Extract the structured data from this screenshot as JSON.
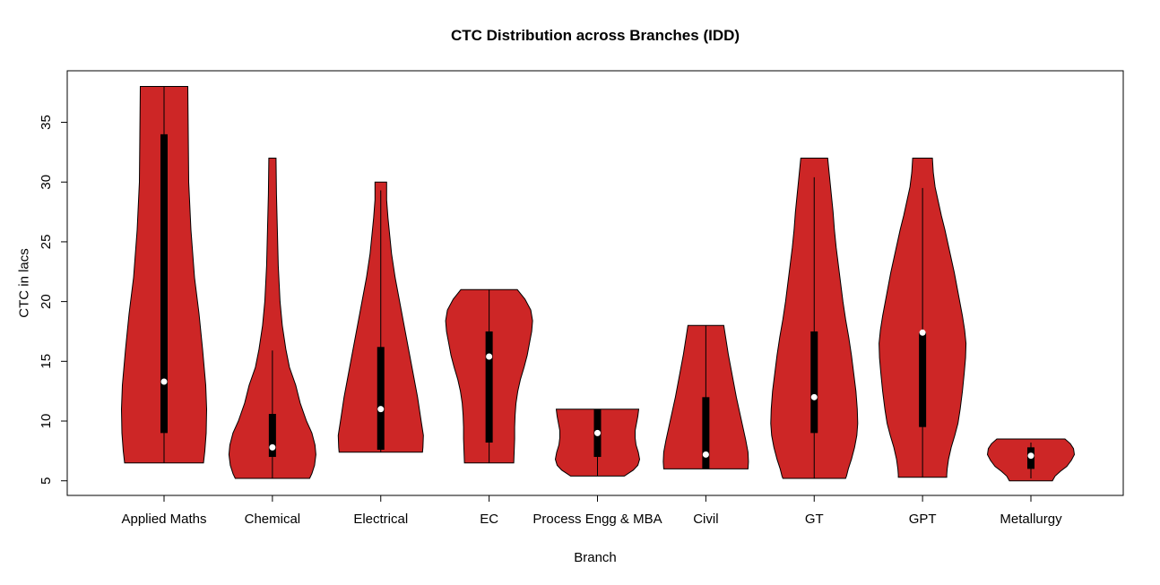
{
  "title": "CTC Distribution across Branches (IDD)",
  "chart_data": {
    "type": "violin",
    "title": "CTC Distribution across Branches (IDD)",
    "xlabel": "Branch",
    "ylabel": "CTC in lacs",
    "ylim": [
      3.8,
      39.3
    ],
    "yticks": [
      5,
      10,
      15,
      20,
      25,
      30,
      35
    ],
    "grid": false,
    "legend": "none",
    "fill_color": "#CD2626",
    "outline_color": "#000000",
    "box_color": "#000000",
    "median_dot_color": "#ffffff",
    "categories": [
      "Applied Maths",
      "Chemical",
      "Electrical",
      "EC",
      "Process Engg & MBA",
      "Civil",
      "GT",
      "GPT",
      "Metallurgy"
    ],
    "series": [
      {
        "branch": "Applied Maths",
        "min": 6.5,
        "max": 38,
        "q1": 9,
        "q3": 34,
        "median": 13.3,
        "whisker_low": 6.5,
        "whisker_high": 38,
        "profile": [
          [
            38,
            26.5
          ],
          [
            34,
            27
          ],
          [
            30,
            27.5
          ],
          [
            26,
            30
          ],
          [
            22,
            34
          ],
          [
            19,
            39
          ],
          [
            16,
            43
          ],
          [
            13,
            46.5
          ],
          [
            11,
            47.5
          ],
          [
            9,
            47
          ],
          [
            7.5,
            45.5
          ],
          [
            6.5,
            44
          ]
        ]
      },
      {
        "branch": "Chemical",
        "min": 5.2,
        "max": 32,
        "q1": 7,
        "q3": 10.6,
        "median": 7.8,
        "whisker_low": 5.2,
        "whisker_high": 15.9,
        "profile": [
          [
            32,
            4
          ],
          [
            29,
            4.5
          ],
          [
            26,
            5.5
          ],
          [
            23,
            6.5
          ],
          [
            20,
            8.5
          ],
          [
            18,
            11
          ],
          [
            16,
            15
          ],
          [
            14.5,
            19
          ],
          [
            13,
            26
          ],
          [
            11.5,
            31
          ],
          [
            10,
            38
          ],
          [
            9,
            44
          ],
          [
            8,
            47.5
          ],
          [
            7.2,
            48.5
          ],
          [
            6.3,
            47
          ],
          [
            5.6,
            44
          ],
          [
            5.2,
            41.5
          ]
        ]
      },
      {
        "branch": "Electrical",
        "min": 7.4,
        "max": 30,
        "q1": 7.6,
        "q3": 16.2,
        "median": 11,
        "whisker_low": 7.4,
        "whisker_high": 29.3,
        "profile": [
          [
            30,
            6.5
          ],
          [
            28.5,
            6.5
          ],
          [
            27,
            8
          ],
          [
            25.5,
            10
          ],
          [
            24,
            12
          ],
          [
            22,
            16
          ],
          [
            20,
            21
          ],
          [
            18,
            26
          ],
          [
            16,
            31
          ],
          [
            14,
            36
          ],
          [
            12,
            41
          ],
          [
            10,
            45
          ],
          [
            8.8,
            47.5
          ],
          [
            7.8,
            47
          ],
          [
            7.4,
            46.5
          ]
        ]
      },
      {
        "branch": "EC",
        "min": 6.5,
        "max": 21,
        "q1": 8.2,
        "q3": 17.5,
        "median": 15.4,
        "whisker_low": 6.5,
        "whisker_high": 21,
        "profile": [
          [
            21,
            31.5
          ],
          [
            20.2,
            40
          ],
          [
            19.3,
            46.5
          ],
          [
            18.4,
            48.5
          ],
          [
            17.5,
            47.5
          ],
          [
            16.5,
            45
          ],
          [
            15.5,
            42.5
          ],
          [
            14.5,
            39
          ],
          [
            13.5,
            35
          ],
          [
            12.5,
            32
          ],
          [
            11.5,
            30
          ],
          [
            10.5,
            29
          ],
          [
            9.5,
            28.5
          ],
          [
            8.5,
            28.5
          ],
          [
            7.5,
            28
          ],
          [
            6.5,
            27.5
          ]
        ]
      },
      {
        "branch": "Process Engg & MBA",
        "min": 5.4,
        "max": 11,
        "q1": 7,
        "q3": 11,
        "median": 9,
        "whisker_low": 5.4,
        "whisker_high": 11,
        "profile": [
          [
            11,
            46
          ],
          [
            10.4,
            45
          ],
          [
            9.8,
            43.5
          ],
          [
            9.2,
            42
          ],
          [
            8.6,
            42
          ],
          [
            8,
            43
          ],
          [
            7.4,
            45.5
          ],
          [
            6.8,
            47
          ],
          [
            6.3,
            45
          ],
          [
            5.9,
            40
          ],
          [
            5.6,
            34
          ],
          [
            5.4,
            30
          ]
        ]
      },
      {
        "branch": "Civil",
        "min": 6,
        "max": 18,
        "q1": 6,
        "q3": 12,
        "median": 7.2,
        "whisker_low": 6,
        "whisker_high": 18,
        "profile": [
          [
            18,
            20
          ],
          [
            16.8,
            22.5
          ],
          [
            15.6,
            25
          ],
          [
            14.4,
            28
          ],
          [
            13.2,
            31
          ],
          [
            12,
            34
          ],
          [
            10.8,
            37.5
          ],
          [
            9.6,
            41
          ],
          [
            8.4,
            44.5
          ],
          [
            7.4,
            47
          ],
          [
            6.6,
            47.5
          ],
          [
            6,
            47
          ]
        ]
      },
      {
        "branch": "GT",
        "min": 5.2,
        "max": 32,
        "q1": 9,
        "q3": 17.5,
        "median": 12,
        "whisker_low": 5.2,
        "whisker_high": 30.4,
        "profile": [
          [
            32,
            15
          ],
          [
            30.5,
            17
          ],
          [
            29,
            19
          ],
          [
            27.5,
            21
          ],
          [
            26,
            22.5
          ],
          [
            24.5,
            24.5
          ],
          [
            23,
            27
          ],
          [
            21.5,
            29.5
          ],
          [
            20,
            32
          ],
          [
            18.5,
            35
          ],
          [
            17,
            38.5
          ],
          [
            15.5,
            41.5
          ],
          [
            14,
            44
          ],
          [
            12.5,
            46.5
          ],
          [
            11,
            48
          ],
          [
            9.8,
            48.5
          ],
          [
            8.8,
            47.5
          ],
          [
            7.8,
            45
          ],
          [
            6.8,
            41.5
          ],
          [
            6,
            38
          ],
          [
            5.4,
            36
          ],
          [
            5.2,
            35
          ]
        ]
      },
      {
        "branch": "GPT",
        "min": 5.3,
        "max": 32,
        "q1": 9.5,
        "q3": 17.4,
        "median": 17.4,
        "whisker_low": 5.3,
        "whisker_high": 29.5,
        "profile": [
          [
            32,
            11
          ],
          [
            30.8,
            12
          ],
          [
            29.6,
            14
          ],
          [
            28.4,
            17.5
          ],
          [
            27.2,
            21
          ],
          [
            26,
            25
          ],
          [
            24.8,
            28.5
          ],
          [
            23.6,
            32
          ],
          [
            22.4,
            35.5
          ],
          [
            21.2,
            38.5
          ],
          [
            20,
            41.5
          ],
          [
            18.8,
            44.5
          ],
          [
            17.6,
            47
          ],
          [
            16.5,
            48.5
          ],
          [
            15.3,
            48
          ],
          [
            14,
            46.5
          ],
          [
            12.5,
            44.5
          ],
          [
            11,
            42
          ],
          [
            9.8,
            39.5
          ],
          [
            8.8,
            36
          ],
          [
            7.8,
            32
          ],
          [
            6.8,
            29
          ],
          [
            6,
            27.5
          ],
          [
            5.5,
            27
          ],
          [
            5.3,
            27
          ]
        ]
      },
      {
        "branch": "Metallurgy",
        "min": 5,
        "max": 8.5,
        "q1": 6,
        "q3": 7.8,
        "median": 7.1,
        "whisker_low": 5.2,
        "whisker_high": 8.2,
        "profile": [
          [
            8.5,
            38
          ],
          [
            8.1,
            44
          ],
          [
            7.7,
            47.5
          ],
          [
            7.2,
            48.5
          ],
          [
            6.7,
            45
          ],
          [
            6.2,
            40
          ],
          [
            5.8,
            33
          ],
          [
            5.4,
            27
          ],
          [
            5,
            24
          ]
        ]
      }
    ]
  }
}
